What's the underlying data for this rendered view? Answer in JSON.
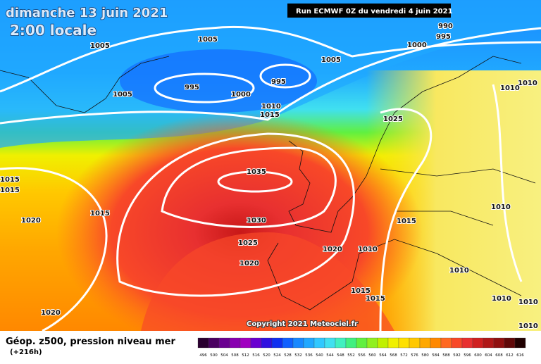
{
  "header": {
    "title": "dimanche 13 juin 2021",
    "subtitle": "2:00 locale",
    "run": "Run ECMWF 0Z du vendredi 4 juin 2021"
  },
  "map": {
    "isobar_labels": [
      "990",
      "995",
      "1000",
      "1005",
      "1005",
      "1005",
      "995",
      "995",
      "1000",
      "1005",
      "1010",
      "1015",
      "1025",
      "1010",
      "1010",
      "1035",
      "1015",
      "1015",
      "1015",
      "1020",
      "1030",
      "1025",
      "1020",
      "1020",
      "1010",
      "1015",
      "1010",
      "1010",
      "1015",
      "1015",
      "1010",
      "1010",
      "1020",
      "1010"
    ],
    "copyright": "Copyright 2021 Meteociel.fr"
  },
  "legend": {
    "title": "Géop. z500, pression niveau mer",
    "lead_time": "(+216h)",
    "scale": [
      496,
      500,
      504,
      508,
      512,
      516,
      520,
      524,
      528,
      532,
      536,
      540,
      544,
      548,
      552,
      556,
      560,
      564,
      568,
      572,
      576,
      580,
      584,
      588,
      592,
      596,
      600,
      604,
      608,
      612,
      616
    ],
    "colors": [
      "#2a0030",
      "#4a0060",
      "#6a0090",
      "#8800b0",
      "#a000c0",
      "#6a00d0",
      "#3010e0",
      "#1030f0",
      "#1060ff",
      "#1888ff",
      "#20a8ff",
      "#30c8ff",
      "#40e0f0",
      "#40f0c0",
      "#40f080",
      "#60f040",
      "#90f020",
      "#c0f000",
      "#f0f000",
      "#ffe000",
      "#ffc800",
      "#ffa800",
      "#ff8800",
      "#ff6820",
      "#f84828",
      "#e83030",
      "#d02020",
      "#b01818",
      "#901010",
      "#600808",
      "#200000"
    ]
  }
}
